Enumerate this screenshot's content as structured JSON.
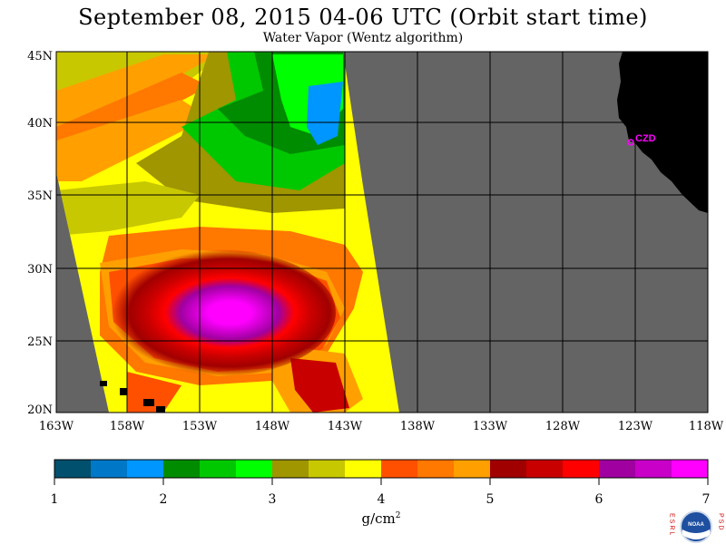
{
  "title": "September 08, 2015  04-06 UTC  (Orbit start time)",
  "subtitle": "Water Vapor (Wentz algorithm)",
  "map": {
    "lat_labels": [
      "45N",
      "40N",
      "35N",
      "30N",
      "25N",
      "20N"
    ],
    "lon_labels": [
      "163W",
      "158W",
      "153W",
      "148W",
      "143W",
      "138W",
      "133W",
      "128W",
      "123W",
      "118W"
    ],
    "station_label": "CZD",
    "colors": {
      "nodata": "#646464",
      "land": "#000000",
      "station": "#ff00ff"
    }
  },
  "colorbar": {
    "tick_labels": [
      "1",
      "2",
      "3",
      "4",
      "5",
      "6",
      "7"
    ],
    "unit": "g/cm",
    "unit_sup": "2",
    "colors": [
      "#00506e",
      "#0078c8",
      "#0096ff",
      "#008c00",
      "#00c800",
      "#00ff00",
      "#a09600",
      "#c8c800",
      "#ffff00",
      "#ff5000",
      "#ff7800",
      "#ffa000",
      "#a00000",
      "#c80000",
      "#ff0000",
      "#a000a0",
      "#c800c8",
      "#ff00ff"
    ]
  },
  "logo": {
    "left_letters": "ESRL",
    "right_letters": "PSD",
    "center_text": "NOAA"
  }
}
